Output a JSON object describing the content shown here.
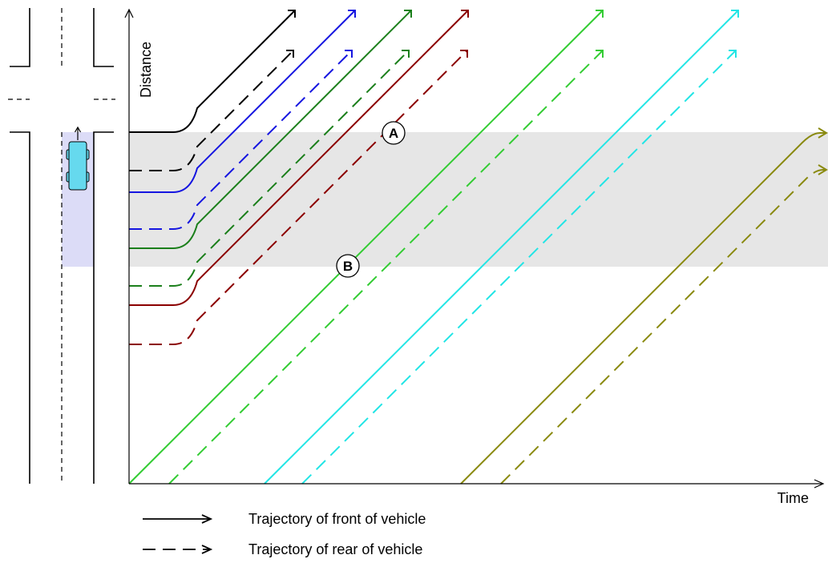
{
  "axes": {
    "x_label": "Time",
    "y_label": "Distance"
  },
  "markers": [
    {
      "label": "A"
    },
    {
      "label": "B"
    }
  ],
  "legend": [
    {
      "style": "solid",
      "label": "Trajectory of front of vehicle"
    },
    {
      "style": "dashed",
      "label": "Trajectory of rear of vehicle"
    }
  ],
  "colors": {
    "black": "#000000",
    "blue": "#1515e0",
    "green": "#1b7f1b",
    "darkred": "#8b0000",
    "lime": "#33cc33",
    "cyan": "#22e5e5",
    "olive": "#8a8a10",
    "conflict_zone": "#e6e6e6",
    "vehicle_zone": "#dcdcf7",
    "vehicle_body": "#66d9ee"
  },
  "trajectories": [
    {
      "color": "black",
      "kind": "queued"
    },
    {
      "color": "blue",
      "kind": "queued"
    },
    {
      "color": "green",
      "kind": "queued"
    },
    {
      "color": "darkred",
      "kind": "queued"
    },
    {
      "color": "lime",
      "kind": "free-flow"
    },
    {
      "color": "cyan",
      "kind": "free-flow"
    },
    {
      "color": "olive",
      "kind": "free-flow"
    }
  ],
  "icons": {
    "vehicle": "car-top-view-icon"
  }
}
